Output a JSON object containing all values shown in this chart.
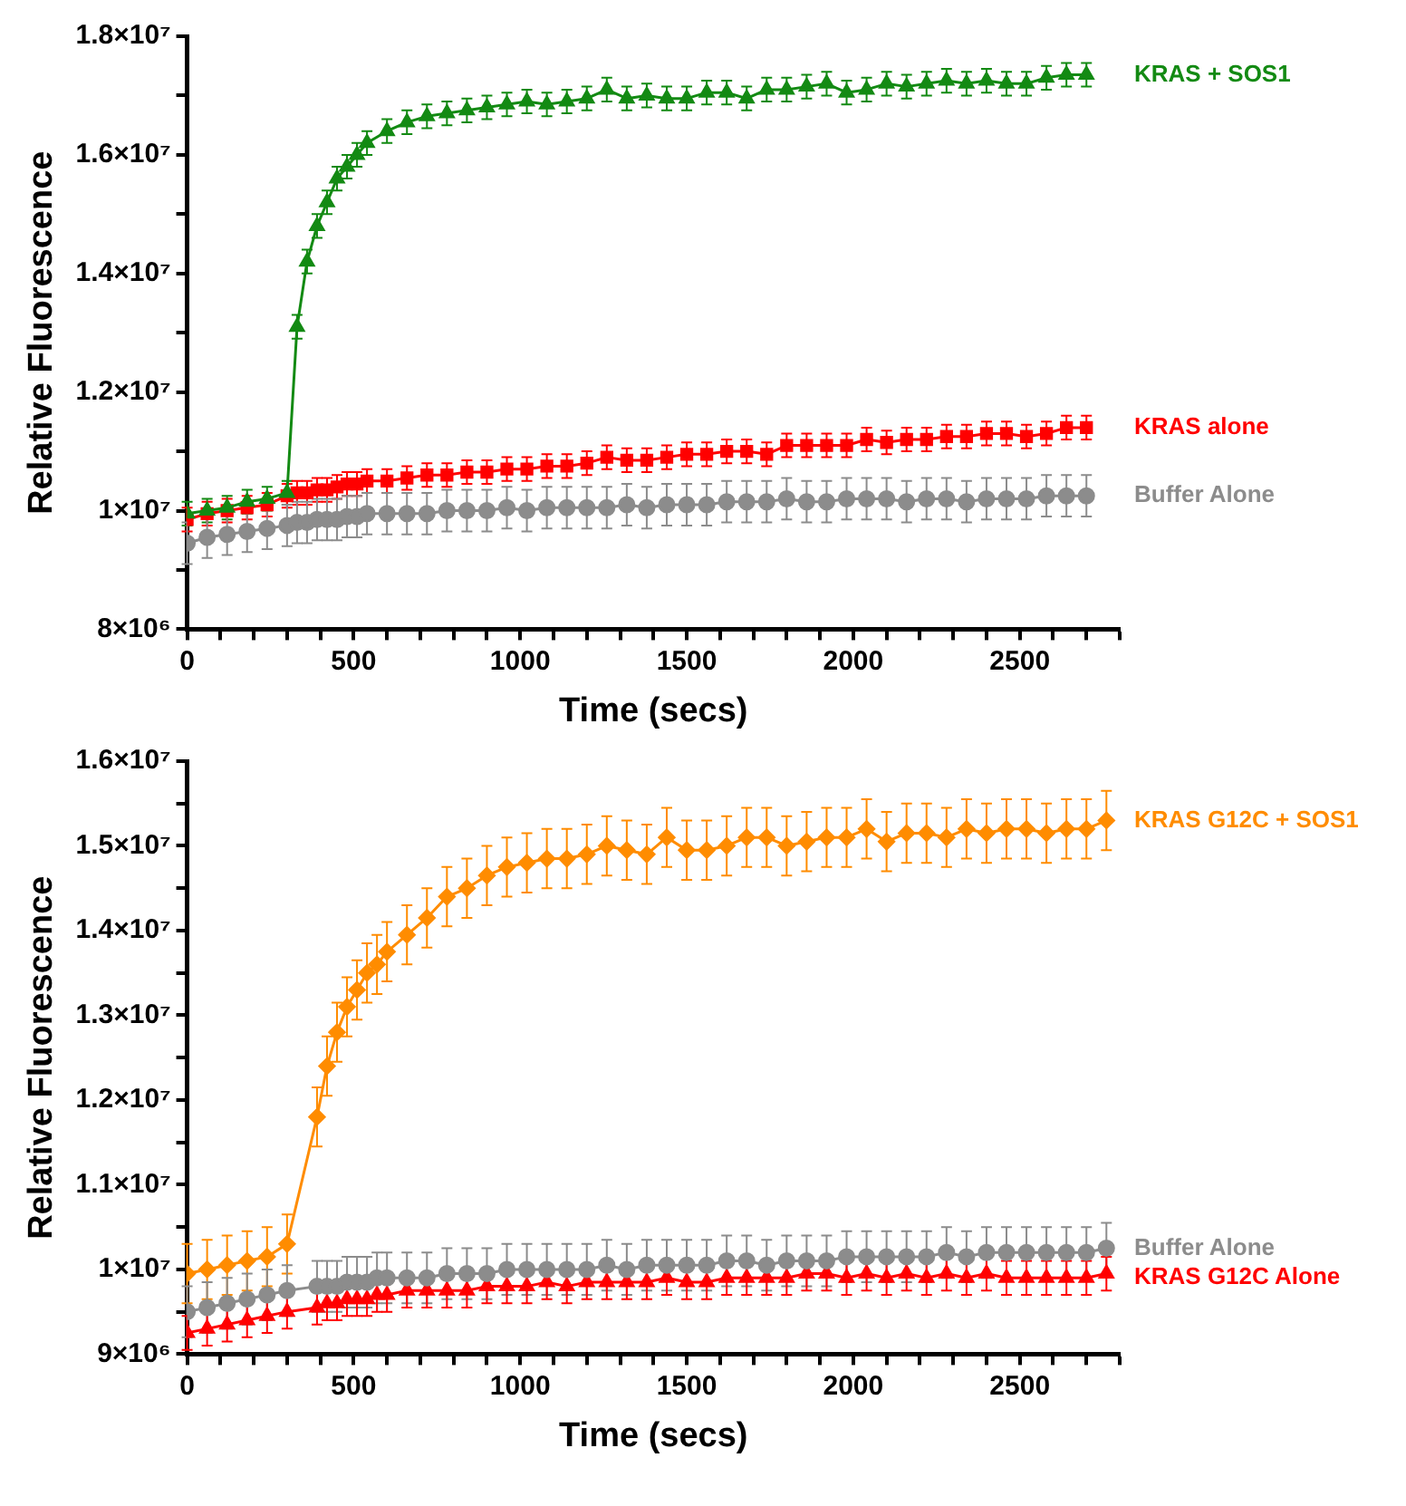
{
  "chart_data": [
    {
      "type": "line",
      "xlabel": "Time (secs)",
      "ylabel": "Relative Fluorescence",
      "legend": "right",
      "grid": false,
      "x": [
        0,
        60,
        120,
        180,
        240,
        300,
        330,
        360,
        390,
        420,
        450,
        480,
        510,
        540,
        600,
        660,
        720,
        780,
        840,
        900,
        960,
        1020,
        1080,
        1140,
        1200,
        1260,
        1320,
        1380,
        1440,
        1500,
        1560,
        1620,
        1680,
        1740,
        1800,
        1860,
        1920,
        1980,
        2040,
        2100,
        2160,
        2220,
        2280,
        2340,
        2400,
        2460,
        2520,
        2580,
        2640,
        2700
      ],
      "xlim": [
        0,
        2800
      ],
      "xticks": [
        0,
        {
          "value": 100,
          "label": null
        },
        {
          "value": 200,
          "label": null
        },
        {
          "value": 300,
          "label": null
        },
        {
          "value": 400,
          "label": null
        },
        500,
        {
          "value": 600,
          "label": null
        },
        {
          "value": 700,
          "label": null
        },
        {
          "value": 800,
          "label": null
        },
        {
          "value": 900,
          "label": null
        },
        1000,
        {
          "value": 1100,
          "label": null
        },
        {
          "value": 1200,
          "label": null
        },
        {
          "value": 1300,
          "label": null
        },
        {
          "value": 1400,
          "label": null
        },
        1500,
        {
          "value": 1600,
          "label": null
        },
        {
          "value": 1700,
          "label": null
        },
        {
          "value": 1800,
          "label": null
        },
        {
          "value": 1900,
          "label": null
        },
        2000,
        {
          "value": 2100,
          "label": null
        },
        {
          "value": 2200,
          "label": null
        },
        {
          "value": 2300,
          "label": null
        },
        {
          "value": 2400,
          "label": null
        },
        2500,
        {
          "value": 2600,
          "label": null
        },
        {
          "value": 2700,
          "label": null
        },
        {
          "value": 2800,
          "label": null
        }
      ],
      "ylim": [
        8000000.0,
        18000000.0
      ],
      "yticks": [
        {
          "value": 8000000.0,
          "label": "8×10⁶"
        },
        {
          "value": 9000000.0,
          "label": null
        },
        {
          "value": 10000000.0,
          "label": "1×10⁷"
        },
        {
          "value": 11000000.0,
          "label": null
        },
        {
          "value": 12000000.0,
          "label": "1.2×10⁷"
        },
        {
          "value": 13000000.0,
          "label": null
        },
        {
          "value": 14000000.0,
          "label": "1.4×10⁷"
        },
        {
          "value": 15000000.0,
          "label": null
        },
        {
          "value": 16000000.0,
          "label": "1.6×10⁷"
        },
        {
          "value": 17000000.0,
          "label": null
        },
        {
          "value": 18000000.0,
          "label": "1.8×10⁷"
        }
      ],
      "series": [
        {
          "name": "KRAS + SOS1",
          "color": "#138a13",
          "marker": "triangle",
          "values": [
            9950000.0,
            10000000.0,
            10050000.0,
            10150000.0,
            10200000.0,
            10300000.0,
            13100000.0,
            14200000.0,
            14800000.0,
            15200000.0,
            15600000.0,
            15800000.0,
            16000000.0,
            16200000.0,
            16400000.0,
            16550000.0,
            16650000.0,
            16700000.0,
            16750000.0,
            16800000.0,
            16850000.0,
            16900000.0,
            16850000.0,
            16900000.0,
            16950000.0,
            17100000.0,
            16950000.0,
            17000000.0,
            16950000.0,
            16950000.0,
            17050000.0,
            17050000.0,
            16950000.0,
            17100000.0,
            17100000.0,
            17150000.0,
            17200000.0,
            17050000.0,
            17100000.0,
            17200000.0,
            17150000.0,
            17200000.0,
            17250000.0,
            17200000.0,
            17250000.0,
            17200000.0,
            17200000.0,
            17300000.0,
            17350000.0,
            17350000.0
          ],
          "errors": [
            200000.0,
            200000.0,
            200000.0,
            200000.0,
            200000.0,
            200000.0,
            200000.0,
            200000.0,
            200000.0,
            200000.0,
            200000.0,
            200000.0,
            200000.0,
            200000.0,
            200000.0,
            200000.0,
            200000.0,
            200000.0,
            200000.0,
            200000.0,
            200000.0,
            200000.0,
            200000.0,
            200000.0,
            200000.0,
            200000.0,
            200000.0,
            200000.0,
            200000.0,
            200000.0,
            200000.0,
            200000.0,
            200000.0,
            200000.0,
            200000.0,
            200000.0,
            200000.0,
            200000.0,
            200000.0,
            200000.0,
            200000.0,
            200000.0,
            200000.0,
            200000.0,
            200000.0,
            200000.0,
            200000.0,
            200000.0,
            200000.0,
            200000.0
          ]
        },
        {
          "name": "KRAS alone",
          "color": "#ff0000",
          "marker": "square",
          "values": [
            9850000.0,
            9950000.0,
            10000000.0,
            10050000.0,
            10100000.0,
            10250000.0,
            10300000.0,
            10300000.0,
            10350000.0,
            10350000.0,
            10400000.0,
            10450000.0,
            10450000.0,
            10500000.0,
            10500000.0,
            10550000.0,
            10600000.0,
            10600000.0,
            10650000.0,
            10650000.0,
            10700000.0,
            10700000.0,
            10750000.0,
            10750000.0,
            10800000.0,
            10900000.0,
            10850000.0,
            10850000.0,
            10900000.0,
            10950000.0,
            10950000.0,
            11000000.0,
            11000000.0,
            10950000.0,
            11100000.0,
            11100000.0,
            11100000.0,
            11100000.0,
            11200000.0,
            11150000.0,
            11200000.0,
            11200000.0,
            11250000.0,
            11250000.0,
            11300000.0,
            11300000.0,
            11250000.0,
            11300000.0,
            11400000.0,
            11400000.0
          ],
          "errors": [
            200000.0,
            200000.0,
            200000.0,
            200000.0,
            200000.0,
            200000.0,
            200000.0,
            200000.0,
            200000.0,
            200000.0,
            200000.0,
            200000.0,
            200000.0,
            200000.0,
            200000.0,
            200000.0,
            200000.0,
            200000.0,
            200000.0,
            200000.0,
            200000.0,
            200000.0,
            200000.0,
            200000.0,
            200000.0,
            200000.0,
            200000.0,
            200000.0,
            200000.0,
            200000.0,
            200000.0,
            200000.0,
            200000.0,
            200000.0,
            200000.0,
            200000.0,
            200000.0,
            200000.0,
            200000.0,
            200000.0,
            200000.0,
            200000.0,
            200000.0,
            200000.0,
            200000.0,
            200000.0,
            200000.0,
            200000.0,
            200000.0,
            200000.0
          ]
        },
        {
          "name": "Buffer Alone",
          "color": "#8c8c8c",
          "marker": "circle",
          "values": [
            9450000.0,
            9550000.0,
            9600000.0,
            9650000.0,
            9700000.0,
            9750000.0,
            9800000.0,
            9800000.0,
            9850000.0,
            9850000.0,
            9850000.0,
            9900000.0,
            9900000.0,
            9950000.0,
            9950000.0,
            9950000.0,
            9950000.0,
            10000000.0,
            10000000.0,
            10000000.0,
            10050000.0,
            10000000.0,
            10050000.0,
            10050000.0,
            10050000.0,
            10050000.0,
            10100000.0,
            10050000.0,
            10100000.0,
            10100000.0,
            10100000.0,
            10150000.0,
            10150000.0,
            10150000.0,
            10200000.0,
            10150000.0,
            10150000.0,
            10200000.0,
            10200000.0,
            10200000.0,
            10150000.0,
            10200000.0,
            10200000.0,
            10150000.0,
            10200000.0,
            10200000.0,
            10200000.0,
            10250000.0,
            10250000.0,
            10250000.0
          ],
          "errors": [
            350000.0,
            350000.0,
            350000.0,
            350000.0,
            350000.0,
            350000.0,
            350000.0,
            350000.0,
            350000.0,
            350000.0,
            350000.0,
            350000.0,
            350000.0,
            350000.0,
            350000.0,
            350000.0,
            350000.0,
            350000.0,
            350000.0,
            350000.0,
            350000.0,
            350000.0,
            350000.0,
            350000.0,
            350000.0,
            350000.0,
            350000.0,
            350000.0,
            350000.0,
            350000.0,
            350000.0,
            350000.0,
            350000.0,
            350000.0,
            350000.0,
            350000.0,
            350000.0,
            350000.0,
            350000.0,
            350000.0,
            350000.0,
            350000.0,
            350000.0,
            350000.0,
            350000.0,
            350000.0,
            350000.0,
            350000.0,
            350000.0,
            350000.0
          ]
        }
      ]
    },
    {
      "type": "line",
      "xlabel": "Time (secs)",
      "ylabel": "Relative Fluorescence",
      "legend": "right",
      "grid": false,
      "x": [
        0,
        60,
        120,
        180,
        240,
        300,
        390,
        420,
        450,
        480,
        510,
        540,
        570,
        600,
        660,
        720,
        780,
        840,
        900,
        960,
        1020,
        1080,
        1140,
        1200,
        1260,
        1320,
        1380,
        1440,
        1500,
        1560,
        1620,
        1680,
        1740,
        1800,
        1860,
        1920,
        1980,
        2040,
        2100,
        2160,
        2220,
        2280,
        2340,
        2400,
        2460,
        2520,
        2580,
        2640,
        2700,
        2760
      ],
      "xlim": [
        0,
        2800
      ],
      "xticks": [
        0,
        {
          "value": 100,
          "label": null
        },
        {
          "value": 200,
          "label": null
        },
        {
          "value": 300,
          "label": null
        },
        {
          "value": 400,
          "label": null
        },
        500,
        {
          "value": 600,
          "label": null
        },
        {
          "value": 700,
          "label": null
        },
        {
          "value": 800,
          "label": null
        },
        {
          "value": 900,
          "label": null
        },
        1000,
        {
          "value": 1100,
          "label": null
        },
        {
          "value": 1200,
          "label": null
        },
        {
          "value": 1300,
          "label": null
        },
        {
          "value": 1400,
          "label": null
        },
        1500,
        {
          "value": 1600,
          "label": null
        },
        {
          "value": 1700,
          "label": null
        },
        {
          "value": 1800,
          "label": null
        },
        {
          "value": 1900,
          "label": null
        },
        2000,
        {
          "value": 2100,
          "label": null
        },
        {
          "value": 2200,
          "label": null
        },
        {
          "value": 2300,
          "label": null
        },
        {
          "value": 2400,
          "label": null
        },
        2500,
        {
          "value": 2600,
          "label": null
        },
        {
          "value": 2700,
          "label": null
        },
        {
          "value": 2800,
          "label": null
        }
      ],
      "ylim": [
        9000000.0,
        16000000.0
      ],
      "yticks": [
        {
          "value": 9000000.0,
          "label": "9×10⁶"
        },
        {
          "value": 9500000.0,
          "label": null
        },
        {
          "value": 10000000.0,
          "label": "1×10⁷"
        },
        {
          "value": 10500000.0,
          "label": null
        },
        {
          "value": 11000000.0,
          "label": "1.1×10⁷"
        },
        {
          "value": 11500000.0,
          "label": null
        },
        {
          "value": 12000000.0,
          "label": "1.2×10⁷"
        },
        {
          "value": 12500000.0,
          "label": null
        },
        {
          "value": 13000000.0,
          "label": "1.3×10⁷"
        },
        {
          "value": 13500000.0,
          "label": null
        },
        {
          "value": 14000000.0,
          "label": "1.4×10⁷"
        },
        {
          "value": 14500000.0,
          "label": null
        },
        {
          "value": 15000000.0,
          "label": "1.5×10⁷"
        },
        {
          "value": 15500000.0,
          "label": null
        },
        {
          "value": 16000000.0,
          "label": "1.6×10⁷"
        }
      ],
      "series": [
        {
          "name": "KRAS G12C + SOS1",
          "color": "#ff8c00",
          "marker": "diamond",
          "values": [
            9950000.0,
            10000000.0,
            10050000.0,
            10100000.0,
            10150000.0,
            10300000.0,
            11800000.0,
            12400000.0,
            12800000.0,
            13100000.0,
            13300000.0,
            13500000.0,
            13600000.0,
            13750000.0,
            13950000.0,
            14150000.0,
            14400000.0,
            14500000.0,
            14650000.0,
            14750000.0,
            14800000.0,
            14850000.0,
            14850000.0,
            14900000.0,
            15000000.0,
            14950000.0,
            14900000.0,
            15100000.0,
            14950000.0,
            14950000.0,
            15000000.0,
            15100000.0,
            15100000.0,
            15000000.0,
            15050000.0,
            15100000.0,
            15100000.0,
            15200000.0,
            15050000.0,
            15150000.0,
            15150000.0,
            15100000.0,
            15200000.0,
            15150000.0,
            15200000.0,
            15200000.0,
            15150000.0,
            15200000.0,
            15200000.0,
            15300000.0
          ],
          "errors": [
            350000.0,
            350000.0,
            350000.0,
            350000.0,
            350000.0,
            350000.0,
            350000.0,
            350000.0,
            350000.0,
            350000.0,
            350000.0,
            350000.0,
            350000.0,
            350000.0,
            350000.0,
            350000.0,
            350000.0,
            350000.0,
            350000.0,
            350000.0,
            350000.0,
            350000.0,
            350000.0,
            350000.0,
            350000.0,
            350000.0,
            350000.0,
            350000.0,
            350000.0,
            350000.0,
            350000.0,
            350000.0,
            350000.0,
            350000.0,
            350000.0,
            350000.0,
            350000.0,
            350000.0,
            350000.0,
            350000.0,
            350000.0,
            350000.0,
            350000.0,
            350000.0,
            350000.0,
            350000.0,
            350000.0,
            350000.0,
            350000.0,
            350000.0
          ]
        },
        {
          "name": "Buffer Alone",
          "color": "#8c8c8c",
          "marker": "circle",
          "values": [
            9500000.0,
            9550000.0,
            9600000.0,
            9650000.0,
            9700000.0,
            9750000.0,
            9800000.0,
            9800000.0,
            9800000.0,
            9850000.0,
            9850000.0,
            9850000.0,
            9900000.0,
            9900000.0,
            9900000.0,
            9900000.0,
            9950000.0,
            9950000.0,
            9950000.0,
            10000000.0,
            10000000.0,
            10000000.0,
            10000000.0,
            10000000.0,
            10050000.0,
            10000000.0,
            10050000.0,
            10050000.0,
            10050000.0,
            10050000.0,
            10100000.0,
            10100000.0,
            10050000.0,
            10100000.0,
            10100000.0,
            10100000.0,
            10150000.0,
            10150000.0,
            10150000.0,
            10150000.0,
            10150000.0,
            10200000.0,
            10150000.0,
            10200000.0,
            10200000.0,
            10200000.0,
            10200000.0,
            10200000.0,
            10200000.0,
            10250000.0
          ],
          "errors": [
            300000.0,
            300000.0,
            300000.0,
            300000.0,
            300000.0,
            300000.0,
            300000.0,
            300000.0,
            300000.0,
            300000.0,
            300000.0,
            300000.0,
            300000.0,
            300000.0,
            300000.0,
            300000.0,
            300000.0,
            300000.0,
            300000.0,
            300000.0,
            300000.0,
            300000.0,
            300000.0,
            300000.0,
            300000.0,
            300000.0,
            300000.0,
            300000.0,
            300000.0,
            300000.0,
            300000.0,
            300000.0,
            300000.0,
            300000.0,
            300000.0,
            300000.0,
            300000.0,
            300000.0,
            300000.0,
            300000.0,
            300000.0,
            300000.0,
            300000.0,
            300000.0,
            300000.0,
            300000.0,
            300000.0,
            300000.0,
            300000.0,
            300000.0
          ]
        },
        {
          "name": "KRAS G12C Alone",
          "color": "#ff0000",
          "marker": "triangle",
          "values": [
            9250000.0,
            9300000.0,
            9350000.0,
            9400000.0,
            9450000.0,
            9500000.0,
            9550000.0,
            9600000.0,
            9600000.0,
            9650000.0,
            9650000.0,
            9650000.0,
            9700000.0,
            9700000.0,
            9750000.0,
            9750000.0,
            9750000.0,
            9750000.0,
            9800000.0,
            9800000.0,
            9800000.0,
            9850000.0,
            9800000.0,
            9850000.0,
            9850000.0,
            9850000.0,
            9850000.0,
            9900000.0,
            9850000.0,
            9850000.0,
            9900000.0,
            9900000.0,
            9900000.0,
            9900000.0,
            9950000.0,
            9950000.0,
            9900000.0,
            9950000.0,
            9900000.0,
            9950000.0,
            9900000.0,
            9950000.0,
            9900000.0,
            9950000.0,
            9900000.0,
            9900000.0,
            9900000.0,
            9900000.0,
            9900000.0,
            9950000.0
          ],
          "errors": [
            200000.0,
            200000.0,
            200000.0,
            200000.0,
            200000.0,
            200000.0,
            200000.0,
            200000.0,
            200000.0,
            200000.0,
            200000.0,
            200000.0,
            200000.0,
            200000.0,
            200000.0,
            200000.0,
            200000.0,
            200000.0,
            200000.0,
            200000.0,
            200000.0,
            200000.0,
            200000.0,
            200000.0,
            200000.0,
            200000.0,
            200000.0,
            200000.0,
            200000.0,
            200000.0,
            200000.0,
            200000.0,
            200000.0,
            200000.0,
            200000.0,
            200000.0,
            200000.0,
            200000.0,
            200000.0,
            200000.0,
            200000.0,
            200000.0,
            200000.0,
            200000.0,
            200000.0,
            200000.0,
            200000.0,
            200000.0,
            200000.0,
            200000.0
          ]
        }
      ]
    }
  ]
}
